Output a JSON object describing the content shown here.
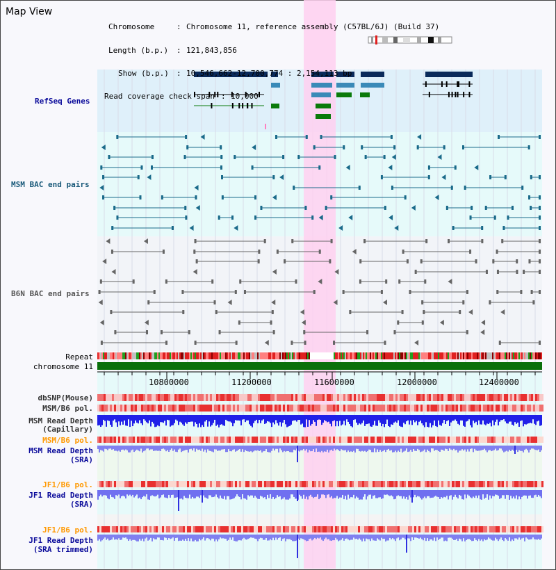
{
  "page": {
    "title": "Map View"
  },
  "info": {
    "chromosome_key": "Chromosome",
    "chromosome_val": "Chromosome 11, reference assembly (C57BL/6J) (Build 37)",
    "length_key": "Length (b.p.)",
    "length_val": "121,843,856",
    "show_key": "Show (b.p.)",
    "show_val": "10,546,662-12,700,774 : 2,154,113 bp",
    "span_key": "Read coverage check span",
    "span_val": "10,000"
  },
  "tracks": {
    "refseq": "RefSeq Genes",
    "msm_bac": "MSM BAC end pairs",
    "b6n_bac": "B6N BAC end pairs",
    "repeat": "Repeat",
    "chromosome": "chromosome 11",
    "dbsnp": "dbSNP(Mouse)",
    "msm_b6_pol_1": "MSM/B6 pol.",
    "msm_read_depth_cap_1": "MSM Read Depth",
    "msm_read_depth_cap_2": "(Capillary)",
    "msm_b6_pol_2": "MSM/B6 pol.",
    "msm_read_depth_sra_1": "MSM Read Depth",
    "msm_read_depth_sra_2": "(SRA)",
    "jf1_b6_pol_1": "JF1/B6 pol.",
    "jf1_read_depth_sra_1": "JF1 Read Depth",
    "jf1_read_depth_sra_2": "(SRA)",
    "jf1_b6_pol_2": "JF1/B6 pol.",
    "jf1_read_depth_trim_1": "JF1 Read Depth",
    "jf1_read_depth_trim_2": "(SRA trimmed)"
  },
  "axis": {
    "ticks": [
      "10800000",
      "11200000",
      "11600000",
      "12000000",
      "12400000"
    ],
    "range": [
      10546662,
      12700774
    ]
  },
  "colors": {
    "refseq_bg": "#dff0fa",
    "msm_bg": "#e6fafa",
    "b6n_bg": "#f2f4f8",
    "highlight": "#ffd0f0",
    "gene_dark": "#0a2a5a",
    "gene_mid": "#3a8ab8",
    "gene_green": "#0a7a0a",
    "msm_bac": "#1a6a8a",
    "b6n_bac": "#666666",
    "chromosome_bar": "#0a700a",
    "label_navy": "#0a0a9a",
    "label_orange": "#ff9900",
    "label_teal": "#1a5a7a"
  }
}
